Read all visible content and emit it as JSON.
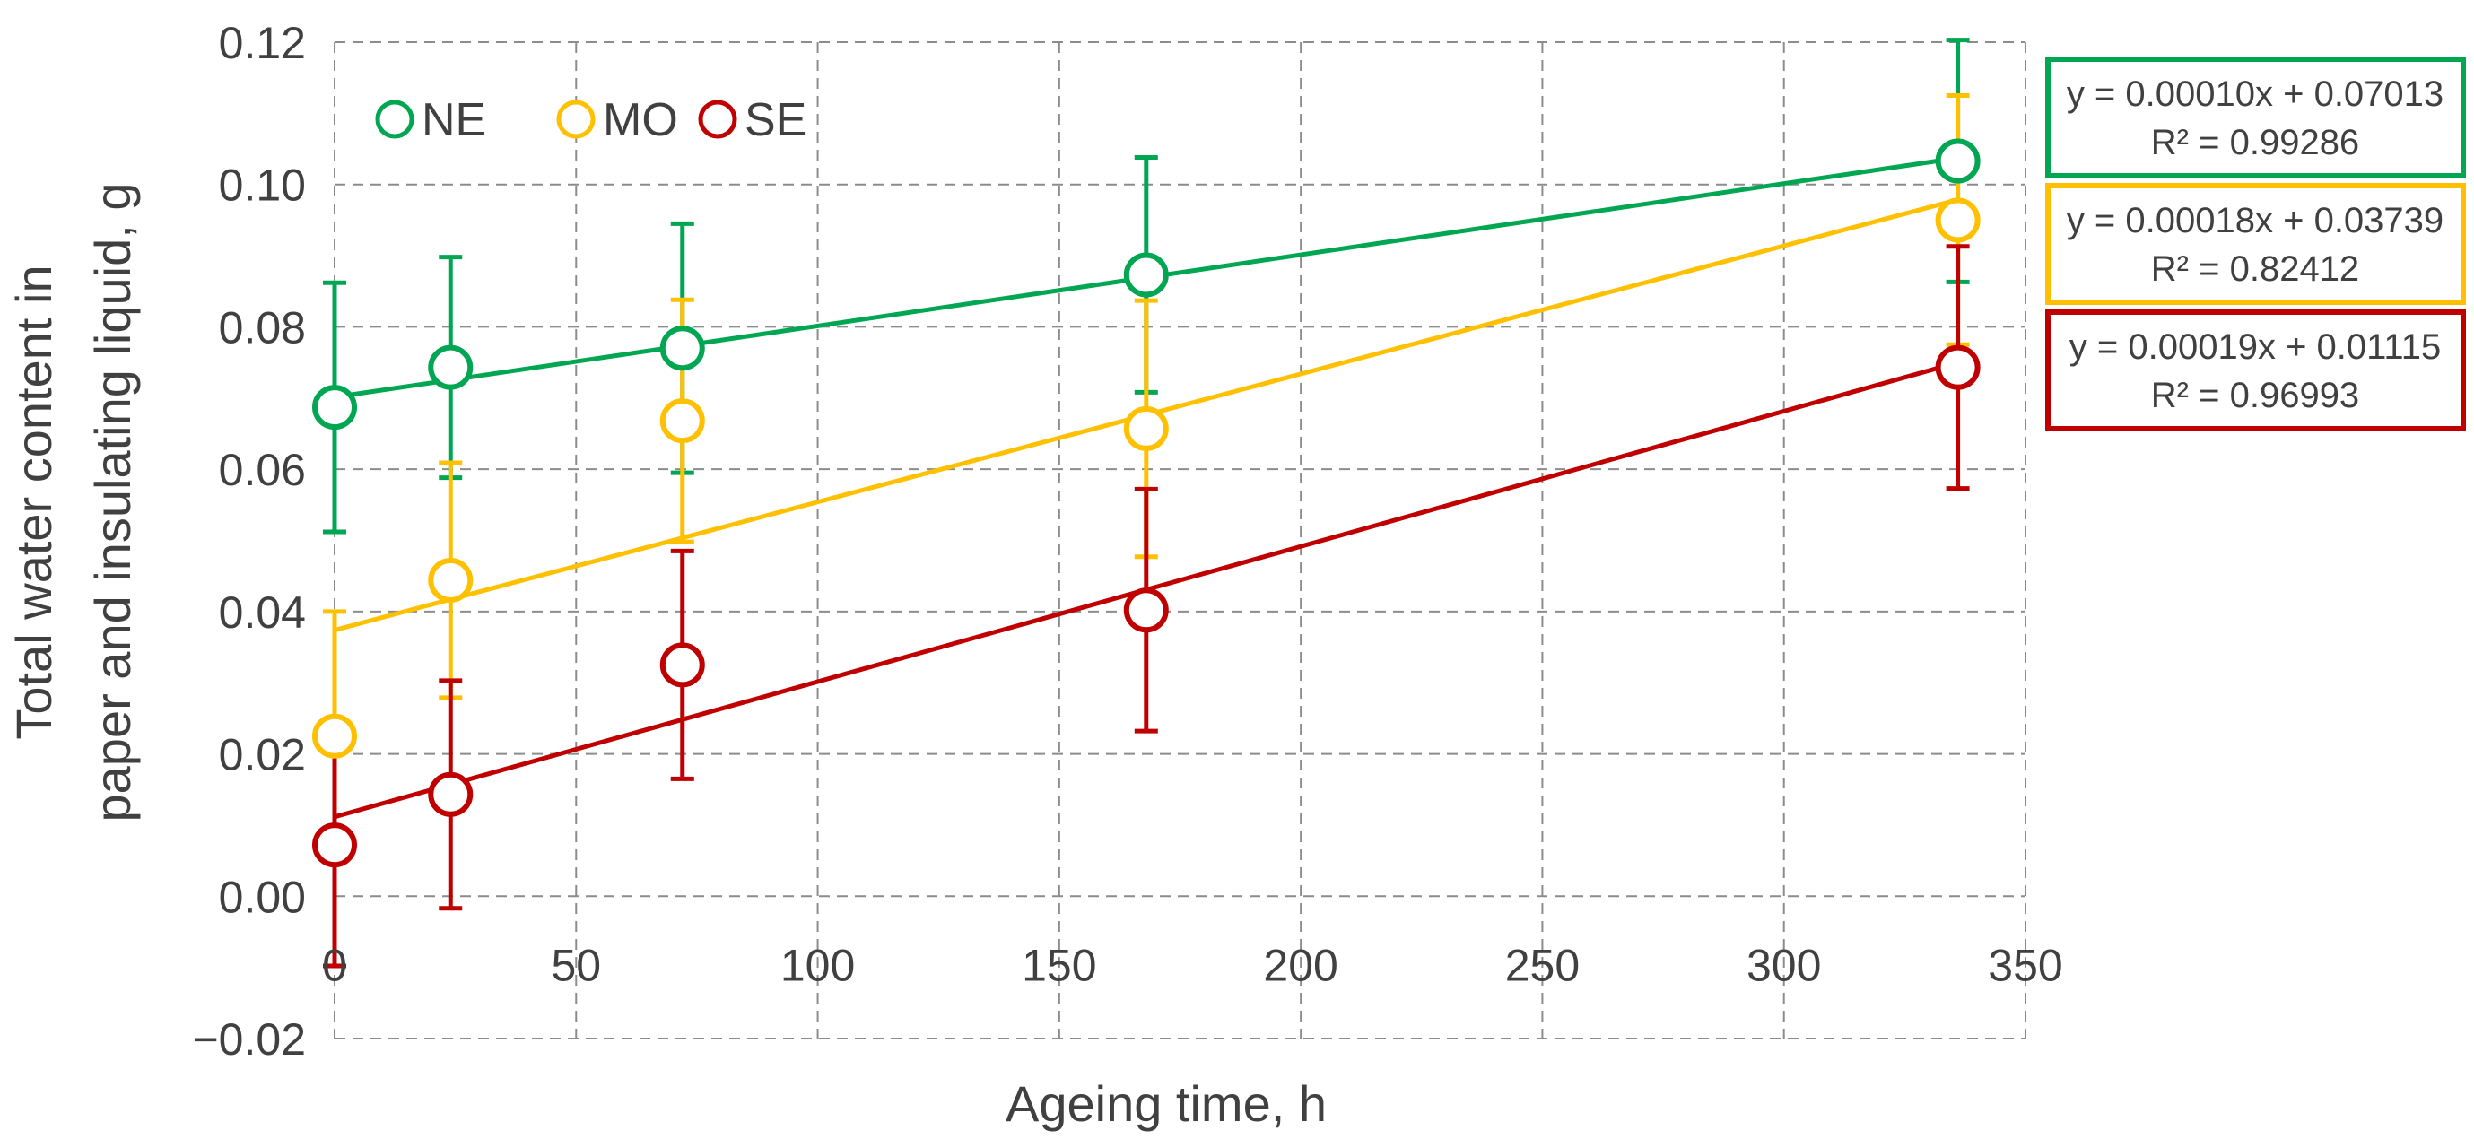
{
  "chart_data": {
    "type": "scatter",
    "title": "",
    "xlabel": "Ageing time, h",
    "ylabel_lines": [
      "Total water content in",
      "paper and insulating liquid, g"
    ],
    "xlim": [
      0,
      350
    ],
    "ylim": [
      -0.02,
      0.12
    ],
    "x_ticks": [
      0,
      50,
      100,
      150,
      200,
      250,
      300,
      350
    ],
    "x_tick_labels": [
      "0",
      "50",
      "100",
      "150",
      "200",
      "250",
      "300",
      "350"
    ],
    "y_ticks": [
      -0.02,
      0.0,
      0.02,
      0.04,
      0.06,
      0.08,
      0.1,
      0.12
    ],
    "y_tick_labels": [
      "−0.02",
      "0.00",
      "0.02",
      "0.04",
      "0.06",
      "0.08",
      "0.10",
      "0.12"
    ],
    "grid": true,
    "legend_position": "top-left",
    "series": [
      {
        "name": "NE",
        "color": "#00a651",
        "x": [
          0,
          24,
          72,
          168,
          336
        ],
        "y": [
          0.0687,
          0.0743,
          0.077,
          0.0873,
          0.1033
        ],
        "err": [
          0.0175,
          0.0155,
          0.0175,
          0.0165,
          0.017
        ],
        "trend": {
          "slope": 0.0001,
          "intercept": 0.07013,
          "equation": "y = 0.00010x + 0.07013",
          "r2": "R² = 0.99286"
        }
      },
      {
        "name": "MO",
        "color": "#ffc000",
        "x": [
          0,
          24,
          72,
          168,
          336
        ],
        "y": [
          0.0225,
          0.0444,
          0.0668,
          0.0657,
          0.095
        ],
        "err": [
          0.0175,
          0.0165,
          0.017,
          0.018,
          0.0175
        ],
        "trend": {
          "slope": 0.00018,
          "intercept": 0.03739,
          "equation": "y = 0.00018x + 0.03739",
          "r2": "R² = 0.82412"
        }
      },
      {
        "name": "SE",
        "color": "#c00000",
        "x": [
          0,
          24,
          72,
          168,
          336
        ],
        "y": [
          0.0072,
          0.0143,
          0.0325,
          0.0402,
          0.0743
        ],
        "err": [
          0.017,
          0.016,
          0.016,
          0.017,
          0.017
        ],
        "trend": {
          "slope": 0.00019,
          "intercept": 0.01115,
          "equation": "y = 0.00019x + 0.01115",
          "r2": "R² = 0.96993"
        }
      }
    ]
  }
}
